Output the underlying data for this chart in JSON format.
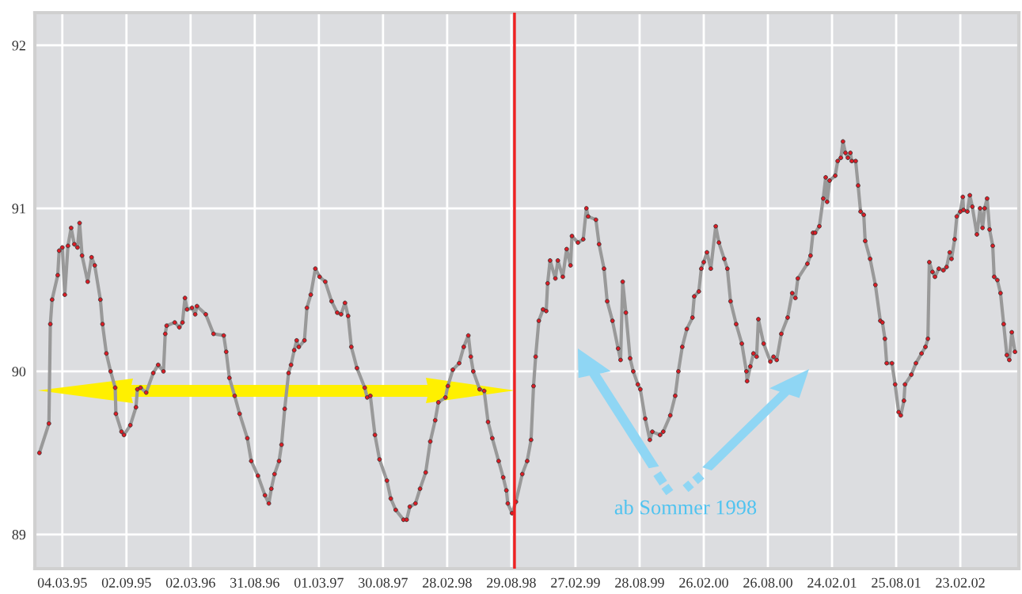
{
  "chart_data": {
    "type": "line",
    "x": [
      "1994-12-29",
      "1995-01-25",
      "1995-01-29",
      "1995-02-03",
      "1995-02-19",
      "1995-02-23",
      "1995-03-04",
      "1995-03-11",
      "1995-03-20",
      "1995-03-29",
      "1995-04-07",
      "1995-04-16",
      "1995-04-22",
      "1995-04-29",
      "1995-05-15",
      "1995-05-26",
      "1995-06-04",
      "1995-06-20",
      "1995-06-26",
      "1995-07-07",
      "1995-07-19",
      "1995-08-01",
      "1995-08-03",
      "1995-08-19",
      "1995-08-26",
      "1995-09-13",
      "1995-09-29",
      "1995-10-03",
      "1995-10-12",
      "1995-10-28",
      "1995-11-17",
      "1995-12-01",
      "1995-12-16",
      "1995-12-21",
      "1995-12-25",
      "1996-01-17",
      "1996-01-30",
      "1996-02-08",
      "1996-02-15",
      "1996-02-21",
      "1996-03-06",
      "1996-03-15",
      "1996-03-20",
      "1996-04-14",
      "1996-05-06",
      "1996-06-04",
      "1996-06-11",
      "1996-06-20",
      "1996-07-05",
      "1996-07-19",
      "1996-08-10",
      "1996-08-21",
      "1996-09-09",
      "1996-09-29",
      "1996-10-10",
      "1996-10-17",
      "1996-10-26",
      "1996-11-08",
      "1996-11-15",
      "1996-11-24",
      "1996-12-05",
      "1996-12-12",
      "1996-12-21",
      "1996-12-28",
      "1997-01-03",
      "1997-01-19",
      "1997-01-26",
      "1997-02-06",
      "1997-02-19",
      "1997-03-03",
      "1997-03-19",
      "1997-04-06",
      "1997-04-22",
      "1997-05-03",
      "1997-05-14",
      "1997-05-23",
      "1997-06-01",
      "1997-06-17",
      "1997-07-09",
      "1997-07-16",
      "1997-07-25",
      "1997-08-07",
      "1997-08-20",
      "1997-09-10",
      "1997-09-21",
      "1997-10-05",
      "1997-10-27",
      "1997-11-05",
      "1997-11-14",
      "1997-11-30",
      "1997-12-13",
      "1997-12-29",
      "1998-01-11",
      "1998-01-25",
      "1998-02-03",
      "1998-02-23",
      "1998-03-02",
      "1998-03-16",
      "1998-04-03",
      "1998-04-16",
      "1998-04-29",
      "1998-05-06",
      "1998-05-13",
      "1998-05-31",
      "1998-06-13",
      "1998-06-24",
      "1998-07-06",
      "1998-07-24",
      "1998-08-06",
      "1998-08-15",
      "1998-08-19",
      "1998-08-31",
      "1998-09-11",
      "1998-09-29",
      "1998-10-13",
      "1998-10-24",
      "1998-10-31",
      "1998-11-06",
      "1998-11-15",
      "1998-11-27",
      "1998-12-06",
      "1998-12-10",
      "1998-12-17",
      "1999-01-01",
      "1999-01-08",
      "1999-01-22",
      "1999-02-02",
      "1999-02-13",
      "1999-02-17",
      "1999-03-06",
      "1999-03-21",
      "1999-03-30",
      "1999-04-04",
      "1999-04-26",
      "1999-05-05",
      "1999-05-19",
      "1999-05-28",
      "1999-06-12",
      "1999-06-28",
      "1999-07-05",
      "1999-07-11",
      "1999-07-20",
      "1999-08-01",
      "1999-08-10",
      "1999-08-23",
      "1999-08-30",
      "1999-09-13",
      "1999-09-26",
      "1999-10-03",
      "1999-10-25",
      "1999-11-03",
      "1999-11-23",
      "1999-12-07",
      "1999-12-16",
      "1999-12-27",
      "2000-01-09",
      "2000-01-25",
      "2000-01-30",
      "2000-02-12",
      "2000-02-19",
      "2000-02-26",
      "2000-03-06",
      "2000-03-17",
      "2000-03-31",
      "2000-04-09",
      "2000-04-24",
      "2000-05-03",
      "2000-05-12",
      "2000-05-28",
      "2000-06-13",
      "2000-06-26",
      "2000-06-28",
      "2000-07-07",
      "2000-07-16",
      "2000-07-25",
      "2000-07-30",
      "2000-08-14",
      "2000-09-02",
      "2000-09-11",
      "2000-09-20",
      "2000-10-03",
      "2000-10-21",
      "2000-11-03",
      "2000-11-12",
      "2000-11-19",
      "2000-12-16",
      "2000-12-25",
      "2001-01-01",
      "2001-01-07",
      "2001-01-19",
      "2001-01-30",
      "2001-02-06",
      "2001-02-10",
      "2001-02-17",
      "2001-03-05",
      "2001-03-12",
      "2001-03-21",
      "2001-03-27",
      "2001-04-03",
      "2001-04-10",
      "2001-04-17",
      "2001-04-21",
      "2001-05-02",
      "2001-05-09",
      "2001-05-16",
      "2001-05-25",
      "2001-05-29",
      "2001-06-12",
      "2001-06-27",
      "2001-07-11",
      "2001-07-17",
      "2001-07-24",
      "2001-07-29",
      "2001-08-13",
      "2001-08-22",
      "2001-09-01",
      "2001-09-07",
      "2001-09-16",
      "2001-09-19",
      "2001-10-07",
      "2001-10-20",
      "2001-11-05",
      "2001-11-16",
      "2001-11-23",
      "2001-11-27",
      "2001-12-06",
      "2001-12-13",
      "2001-12-24",
      "2002-01-06",
      "2002-01-15",
      "2002-01-24",
      "2002-01-29",
      "2002-02-07",
      "2002-02-13",
      "2002-02-23",
      "2002-03-02",
      "2002-03-04",
      "2002-03-15",
      "2002-03-22",
      "2002-03-29",
      "2002-04-11",
      "2002-04-20",
      "2002-04-27",
      "2002-05-03",
      "2002-05-10",
      "2002-05-17",
      "2002-05-26",
      "2002-05-30",
      "2002-06-08",
      "2002-06-17",
      "2002-06-26",
      "2002-07-05",
      "2002-07-12",
      "2002-07-19",
      "2002-07-28"
    ],
    "series": [
      {
        "color": "#999999",
        "values": [
          89.5,
          89.68,
          90.29,
          90.44,
          90.59,
          90.74,
          90.76,
          90.47,
          90.77,
          90.88,
          90.78,
          90.76,
          90.91,
          90.71,
          90.55,
          90.7,
          90.65,
          90.44,
          90.29,
          90.11,
          90.0,
          89.9,
          89.74,
          89.63,
          89.61,
          89.67,
          89.78,
          89.89,
          89.9,
          89.87,
          89.99,
          90.04,
          90.0,
          90.23,
          90.28,
          90.3,
          90.27,
          90.3,
          90.45,
          90.38,
          90.39,
          90.35,
          90.4,
          90.35,
          90.23,
          90.22,
          90.12,
          89.96,
          89.85,
          89.74,
          89.59,
          89.45,
          89.36,
          89.24,
          89.19,
          89.28,
          89.37,
          89.45,
          89.55,
          89.77,
          89.99,
          90.04,
          90.13,
          90.19,
          90.15,
          90.19,
          90.39,
          90.47,
          90.63,
          90.58,
          90.55,
          90.43,
          90.36,
          90.35,
          90.42,
          90.34,
          90.15,
          90.02,
          89.9,
          89.84,
          89.85,
          89.61,
          89.46,
          89.33,
          89.22,
          89.15,
          89.09,
          89.09,
          89.17,
          89.19,
          89.28,
          89.38,
          89.57,
          89.7,
          89.81,
          89.84,
          89.91,
          90.01,
          90.05,
          90.15,
          90.22,
          90.09,
          90.0,
          89.89,
          89.88,
          89.69,
          89.59,
          89.45,
          89.35,
          89.27,
          89.19,
          89.13,
          89.2,
          89.37,
          89.45,
          89.58,
          89.91,
          90.09,
          90.31,
          90.38,
          90.37,
          90.54,
          90.68,
          90.57,
          90.68,
          90.58,
          90.75,
          90.65,
          90.83,
          90.79,
          90.81,
          91.0,
          90.95,
          90.93,
          90.78,
          90.63,
          90.43,
          90.31,
          90.14,
          90.07,
          90.55,
          90.36,
          90.08,
          90.0,
          89.92,
          89.89,
          89.71,
          89.58,
          89.63,
          89.61,
          89.63,
          89.73,
          89.85,
          90.0,
          90.15,
          90.26,
          90.33,
          90.46,
          90.49,
          90.63,
          90.67,
          90.73,
          90.63,
          90.89,
          90.79,
          90.69,
          90.63,
          90.43,
          90.29,
          90.17,
          90.0,
          89.94,
          90.03,
          90.11,
          90.09,
          90.32,
          90.17,
          90.06,
          90.09,
          90.07,
          90.23,
          90.33,
          90.48,
          90.45,
          90.57,
          90.66,
          90.71,
          90.85,
          90.85,
          90.89,
          91.06,
          91.19,
          91.04,
          91.17,
          91.2,
          91.29,
          91.31,
          91.41,
          91.34,
          91.31,
          91.34,
          91.29,
          91.29,
          91.14,
          90.98,
          90.96,
          90.8,
          90.69,
          90.53,
          90.31,
          90.3,
          90.2,
          90.05,
          90.05,
          89.92,
          89.75,
          89.73,
          89.82,
          89.92,
          89.98,
          90.05,
          90.11,
          90.15,
          90.2,
          90.67,
          90.61,
          90.58,
          90.63,
          90.62,
          90.64,
          90.73,
          90.69,
          90.81,
          90.95,
          90.98,
          91.07,
          90.99,
          90.98,
          91.08,
          91.01,
          90.84,
          91.0,
          90.88,
          91.0,
          91.06,
          90.87,
          90.77,
          90.58,
          90.56,
          90.48,
          90.29,
          90.1,
          90.07,
          90.24,
          90.12
        ]
      }
    ],
    "marker": "circle",
    "xlim": [
      "1994-12-16",
      "2002-08-08"
    ],
    "xticks": [
      {
        "value": "1995-03-04",
        "label": "04.03.95"
      },
      {
        "value": "1995-09-02",
        "label": "02.09.95"
      },
      {
        "value": "1996-03-02",
        "label": "02.03.96"
      },
      {
        "value": "1996-08-31",
        "label": "31.08.96"
      },
      {
        "value": "1997-03-01",
        "label": "01.03.97"
      },
      {
        "value": "1997-08-30",
        "label": "30.08.97"
      },
      {
        "value": "1998-02-28",
        "label": "28.02.98"
      },
      {
        "value": "1998-08-29",
        "label": "29.08.98"
      },
      {
        "value": "1999-02-27",
        "label": "27.02.99"
      },
      {
        "value": "1999-08-28",
        "label": "28.08.99"
      },
      {
        "value": "2000-02-26",
        "label": "26.02.00"
      },
      {
        "value": "2000-08-26",
        "label": "26.08.00"
      },
      {
        "value": "2001-02-24",
        "label": "24.02.01"
      },
      {
        "value": "2001-08-25",
        "label": "25.08.01"
      },
      {
        "value": "2002-02-23",
        "label": "23.02.02"
      }
    ],
    "ylim": [
      88.79,
      92.2
    ],
    "yticks": [
      89,
      90,
      91,
      92
    ],
    "grid": true,
    "ref_lines": [
      {
        "axis": "x",
        "value": "1998-09-07",
        "color": "#ee2222"
      }
    ],
    "annotations": [
      "ab Sommer 1998"
    ]
  }
}
